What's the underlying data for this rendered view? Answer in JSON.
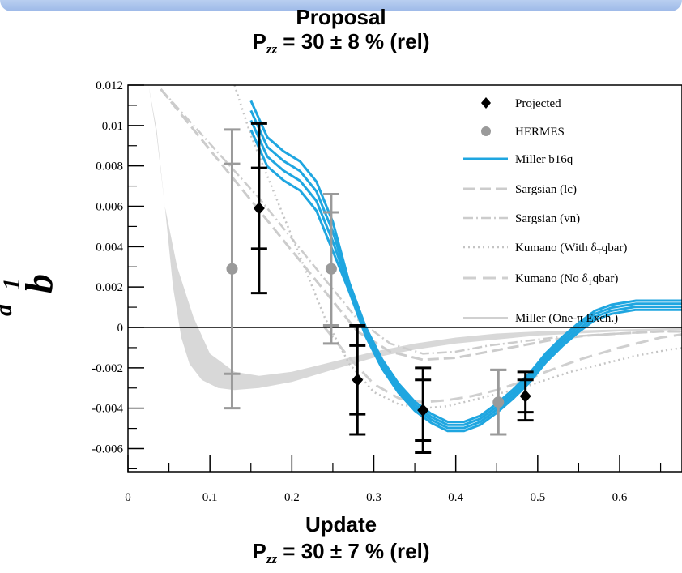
{
  "header": {
    "top_title": "Proposal",
    "top_p_label": "P",
    "top_p_sub": "zz",
    "top_p_value": " = 30 ± 8 % (rel)",
    "bottom_title": "Update",
    "bottom_p_label": "P",
    "bottom_p_sub": "zz",
    "bottom_p_value": " = 30 ± 7 % (rel)"
  },
  "chart_data": {
    "type": "scatter",
    "ylabel_main": "b",
    "ylabel_sub": "1",
    "ylabel_sup": "d",
    "xlim": [
      0,
      0.7
    ],
    "ylim": [
      -0.007,
      0.012
    ],
    "x_ticks": [
      "0",
      "0.1",
      "0.2",
      "0.3",
      "0.4",
      "0.5",
      "0.6"
    ],
    "y_ticks": [
      "0.012",
      "0.01",
      "0.008",
      "0.006",
      "0.004",
      "0.002",
      "0",
      "-0.002",
      "-0.004",
      "-0.006"
    ],
    "legend": [
      "Projected",
      "HERMES",
      "Miller b16q",
      "Sargsian (lc)",
      "Sargsian (vn)",
      "Kumano (With δ",
      "Kumano (No δ",
      "Miller (One-π Exch.)"
    ],
    "legend_sub": [
      "",
      "",
      "",
      "",
      "",
      "T",
      "T",
      ""
    ],
    "legend_suffix": [
      "",
      "",
      "",
      "",
      "",
      "qbar)",
      "qbar)",
      ""
    ],
    "colors": {
      "projected": "#000000",
      "hermes": "#9a9a9a",
      "miller_b16q": "#1fa6e0",
      "models": "#d4d4d4"
    },
    "projected": [
      {
        "x": 0.16,
        "y": 0.0059,
        "err_inner": 0.002,
        "err_outer": 0.0042
      },
      {
        "x": 0.28,
        "y": -0.0026,
        "err_inner": 0.0017,
        "err_outer": 0.0027
      },
      {
        "x": 0.36,
        "y": -0.0041,
        "err_inner": 0.0015,
        "err_outer": 0.0021
      },
      {
        "x": 0.485,
        "y": -0.0034,
        "err_inner": 0.0008,
        "err_outer": 0.0012
      }
    ],
    "hermes": [
      {
        "x": 0.127,
        "y": 0.0029,
        "err_inner": 0.0052,
        "err_outer": 0.0069
      },
      {
        "x": 0.248,
        "y": 0.0029,
        "err_inner": 0.0028,
        "err_outer": 0.0037
      },
      {
        "x": 0.452,
        "y": -0.0037,
        "err_inner": 0.0016,
        "err_outer": 0.0016
      }
    ],
    "miller_b16q": {
      "x": [
        0.15,
        0.17,
        0.19,
        0.21,
        0.23,
        0.25,
        0.27,
        0.29,
        0.31,
        0.33,
        0.35,
        0.37,
        0.39,
        0.41,
        0.43,
        0.45,
        0.47,
        0.49,
        0.51,
        0.53,
        0.55,
        0.57,
        0.59,
        0.62,
        0.65,
        0.7
      ],
      "y": [
        0.0105,
        0.0087,
        0.008,
        0.0075,
        0.0065,
        0.0045,
        0.002,
        -0.0002,
        -0.0018,
        -0.003,
        -0.0039,
        -0.0045,
        -0.0049,
        -0.0049,
        -0.0046,
        -0.004,
        -0.0033,
        -0.0025,
        -0.0015,
        -0.0007,
        0.0,
        0.0006,
        0.0009,
        0.0011,
        0.0011,
        0.0011
      ]
    },
    "sargsian_lc": {
      "x": [
        0.04,
        0.08,
        0.12,
        0.16,
        0.2,
        0.24,
        0.28,
        0.32,
        0.36,
        0.4,
        0.44,
        0.48,
        0.52,
        0.56,
        0.6,
        0.65,
        0.7
      ],
      "y": [
        0.0118,
        0.0098,
        0.0078,
        0.0058,
        0.0038,
        0.0018,
        -0.0002,
        -0.0012,
        -0.0016,
        -0.0015,
        -0.0012,
        -0.0009,
        -0.0006,
        -0.0004,
        -0.0003,
        -0.0002,
        -0.0002
      ]
    },
    "sargsian_vn": {
      "x": [
        0.04,
        0.08,
        0.12,
        0.16,
        0.2,
        0.24,
        0.28,
        0.32,
        0.36,
        0.4,
        0.44,
        0.48,
        0.52,
        0.56,
        0.6,
        0.65,
        0.7
      ],
      "y": [
        0.0118,
        0.01,
        0.0082,
        0.0064,
        0.0044,
        0.0024,
        0.0004,
        -0.0008,
        -0.0013,
        -0.0012,
        -0.0009,
        -0.0007,
        -0.0005,
        -0.0004,
        -0.0003,
        -0.0002,
        -0.0002
      ]
    },
    "kumano_with": {
      "x": [
        0.13,
        0.15,
        0.18,
        0.21,
        0.24,
        0.27,
        0.3,
        0.33,
        0.36,
        0.39,
        0.42,
        0.45,
        0.48,
        0.51,
        0.54,
        0.58,
        0.62,
        0.66,
        0.7
      ],
      "y": [
        0.012,
        0.0095,
        0.0065,
        0.0035,
        0.0005,
        -0.0018,
        -0.0032,
        -0.0038,
        -0.004,
        -0.0039,
        -0.0036,
        -0.0033,
        -0.003,
        -0.0026,
        -0.0022,
        -0.0018,
        -0.0014,
        -0.0011,
        -0.0009
      ]
    },
    "kumano_no": {
      "x": [
        0.24,
        0.27,
        0.3,
        0.33,
        0.36,
        0.39,
        0.42,
        0.45,
        0.48,
        0.51,
        0.55,
        0.6,
        0.65,
        0.7
      ],
      "y": [
        0.0,
        -0.0015,
        -0.0028,
        -0.0035,
        -0.0037,
        -0.0036,
        -0.0034,
        -0.0031,
        -0.0027,
        -0.0022,
        -0.0016,
        -0.001,
        -0.0005,
        -0.0002
      ]
    },
    "miller_one_pi": {
      "upper": {
        "x": [
          0.025,
          0.035,
          0.045,
          0.06,
          0.08,
          0.1,
          0.13,
          0.16,
          0.2,
          0.25,
          0.3,
          0.35,
          0.4,
          0.45,
          0.5,
          0.6,
          0.7
        ],
        "y": [
          0.012,
          0.0095,
          0.006,
          0.003,
          0.0005,
          -0.0013,
          -0.0022,
          -0.0024,
          -0.0022,
          -0.0017,
          -0.0012,
          -0.0008,
          -0.0005,
          -0.0003,
          -0.0002,
          -0.0001,
          0.0
        ]
      },
      "lower": {
        "x": [
          0.7,
          0.6,
          0.5,
          0.45,
          0.4,
          0.35,
          0.3,
          0.25,
          0.2,
          0.16,
          0.13,
          0.11,
          0.09,
          0.075,
          0.065,
          0.055,
          0.045,
          0.035,
          0.025
        ],
        "y": [
          -0.0001,
          -0.0002,
          -0.0004,
          -0.0006,
          -0.0008,
          -0.0011,
          -0.0015,
          -0.0021,
          -0.0027,
          -0.003,
          -0.0031,
          -0.003,
          -0.0026,
          -0.0018,
          -0.0005,
          0.002,
          0.006,
          0.0098,
          0.012
        ]
      }
    }
  }
}
